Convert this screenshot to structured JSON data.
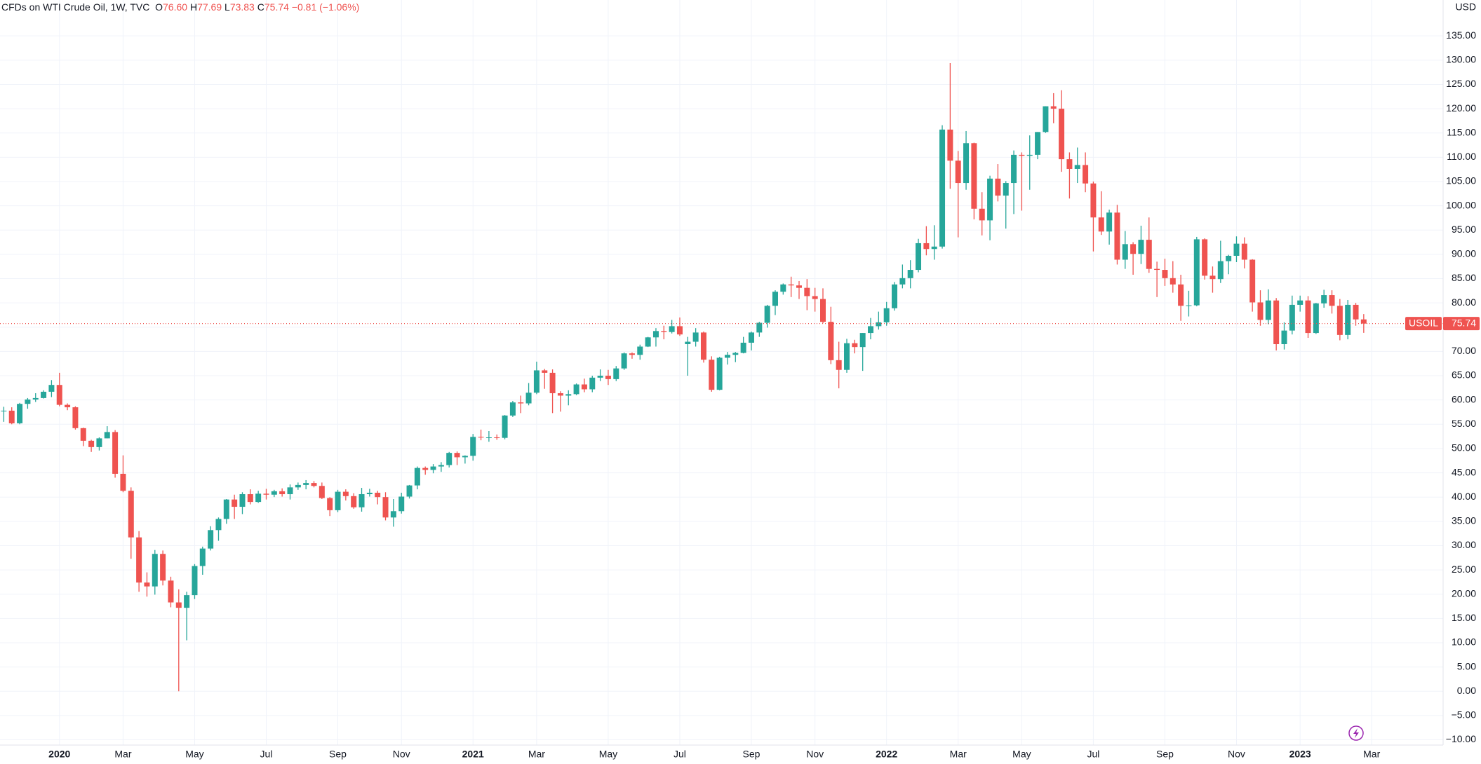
{
  "header": {
    "title": "CFDs on WTI Crude Oil, 1W, TVC",
    "open_key": "O",
    "open": "76.60",
    "high_key": "H",
    "high": "77.69",
    "low_key": "L",
    "low": "73.83",
    "close_key": "C",
    "close": "75.74",
    "change": "−0.81 (−1.06%)"
  },
  "chart_data": {
    "type": "candlestick",
    "y_unit": "USD",
    "symbol": "USOIL",
    "last_price": 75.74,
    "up_color": "#26a69a",
    "down_color": "#ef5350",
    "grid": true,
    "ylim": [
      -11.08,
      142.39
    ],
    "yticks": [
      {
        "value": 135,
        "label": "135.00"
      },
      {
        "value": 130,
        "label": "130.00"
      },
      {
        "value": 125,
        "label": "125.00"
      },
      {
        "value": 120,
        "label": "120.00"
      },
      {
        "value": 115,
        "label": "115.00"
      },
      {
        "value": 110,
        "label": "110.00"
      },
      {
        "value": 105,
        "label": "105.00"
      },
      {
        "value": 100,
        "label": "100.00"
      },
      {
        "value": 95,
        "label": "95.00"
      },
      {
        "value": 90,
        "label": "90.00"
      },
      {
        "value": 85,
        "label": "85.00"
      },
      {
        "value": 80,
        "label": "80.00"
      },
      {
        "value": 75,
        "label": "75.00"
      },
      {
        "value": 70,
        "label": "70.00"
      },
      {
        "value": 65,
        "label": "65.00"
      },
      {
        "value": 60,
        "label": "60.00"
      },
      {
        "value": 55,
        "label": "55.00"
      },
      {
        "value": 50,
        "label": "50.00"
      },
      {
        "value": 45,
        "label": "45.00"
      },
      {
        "value": 40,
        "label": "40.00"
      },
      {
        "value": 35,
        "label": "35.00"
      },
      {
        "value": 30,
        "label": "30.00"
      },
      {
        "value": 25,
        "label": "25.00"
      },
      {
        "value": 20,
        "label": "20.00"
      },
      {
        "value": 15,
        "label": "15.00"
      },
      {
        "value": 10,
        "label": "10.00"
      },
      {
        "value": 5,
        "label": "5.00"
      },
      {
        "value": 0,
        "label": "0.00"
      },
      {
        "value": -5,
        "label": "−5.00"
      },
      {
        "value": -10,
        "label": "−10.00"
      }
    ],
    "categories": [
      null,
      null,
      null,
      null,
      null,
      null,
      null,
      "2020",
      null,
      null,
      null,
      null,
      null,
      null,
      null,
      "Mar",
      null,
      null,
      null,
      null,
      null,
      null,
      null,
      null,
      "May",
      null,
      null,
      null,
      null,
      null,
      null,
      null,
      null,
      "Jul",
      null,
      null,
      null,
      null,
      null,
      null,
      null,
      null,
      "Sep",
      null,
      null,
      null,
      null,
      null,
      null,
      null,
      "Nov",
      null,
      null,
      null,
      null,
      null,
      null,
      null,
      null,
      "2021",
      null,
      null,
      null,
      null,
      null,
      null,
      null,
      "Mar",
      null,
      null,
      null,
      null,
      null,
      null,
      null,
      null,
      "May",
      null,
      null,
      null,
      null,
      null,
      null,
      null,
      null,
      "Jul",
      null,
      null,
      null,
      null,
      null,
      null,
      null,
      null,
      "Sep",
      null,
      null,
      null,
      null,
      null,
      null,
      null,
      "Nov",
      null,
      null,
      null,
      null,
      null,
      null,
      null,
      null,
      "2022",
      null,
      null,
      null,
      null,
      null,
      null,
      null,
      null,
      "Mar",
      null,
      null,
      null,
      null,
      null,
      null,
      null,
      "May",
      null,
      null,
      null,
      null,
      null,
      null,
      null,
      null,
      "Jul",
      null,
      null,
      null,
      null,
      null,
      null,
      null,
      null,
      "Sep",
      null,
      null,
      null,
      null,
      null,
      null,
      null,
      null,
      "Nov",
      null,
      null,
      null,
      null,
      null,
      null,
      null,
      "2023",
      null,
      null,
      null,
      null,
      null,
      null,
      null,
      null,
      "Mar"
    ],
    "open": [
      57.7,
      57.8,
      55.2,
      59.2,
      60.1,
      60.4,
      61.7,
      63.1,
      59.0,
      58.5,
      54.2,
      51.6,
      50.3,
      52.1,
      53.4,
      44.8,
      41.3,
      31.7,
      22.4,
      21.6,
      28.3,
      22.8,
      18.3,
      17.2,
      19.8,
      25.8,
      29.4,
      33.2,
      35.5,
      39.5,
      38.0,
      40.6,
      39.0,
      40.7,
      40.5,
      41.2,
      40.6,
      42.0,
      42.5,
      42.9,
      42.3,
      39.8,
      37.3,
      41.1,
      40.2,
      37.9,
      40.6,
      40.9,
      40.0,
      35.8,
      37.1,
      40.1,
      42.4,
      46.0,
      45.6,
      46.3,
      46.6,
      49.1,
      48.2,
      48.5,
      52.4,
      52.3,
      52.3,
      52.2,
      56.8,
      59.5,
      59.3,
      61.5,
      66.1,
      65.6,
      61.4,
      60.9,
      61.2,
      63.2,
      62.2,
      64.6,
      65.0,
      64.3,
      66.5,
      69.6,
      69.3,
      71.0,
      72.9,
      74.2,
      74.0,
      75.2,
      71.5,
      72.0,
      73.9,
      68.3,
      62.1,
      68.7,
      69.3,
      69.7,
      71.8,
      73.9,
      75.9,
      79.4,
      82.3,
      83.8,
      83.6,
      83.1,
      81.4,
      80.8,
      76.1,
      68.2,
      66.2,
      71.7,
      70.9,
      73.8,
      75.2,
      76.0,
      78.9,
      83.8,
      85.1,
      86.8,
      92.3,
      91.1,
      91.6,
      115.7,
      109.3,
      104.7,
      112.9,
      99.4,
      97.0,
      105.6,
      102.1,
      104.7,
      110.5,
      110.3,
      110.5,
      115.2,
      120.5,
      120.0,
      109.6,
      107.6,
      108.4,
      104.6,
      97.6,
      94.7,
      98.6,
      88.9,
      92.1,
      90.1,
      93.0,
      87.0,
      86.8,
      85.1,
      83.8,
      79.4,
      79.5,
      93.1,
      85.6,
      84.9,
      88.6,
      89.7,
      92.2,
      88.9,
      80.1,
      76.5,
      80.5,
      71.5,
      74.3,
      79.6,
      80.5,
      73.8,
      79.9,
      81.6,
      79.4,
      73.4,
      79.6,
      76.6,
      null
    ],
    "high": [
      58.6,
      58.5,
      59.4,
      60.4,
      61.4,
      62.0,
      64.1,
      65.6,
      59.3,
      58.7,
      54.3,
      51.8,
      52.3,
      54.6,
      53.8,
      48.6,
      42.0,
      33.0,
      24.5,
      29.1,
      29.0,
      23.6,
      21.0,
      20.5,
      26.2,
      29.8,
      34.0,
      35.8,
      39.6,
      40.5,
      41.0,
      41.6,
      41.3,
      41.7,
      41.5,
      41.8,
      42.6,
      43.0,
      43.5,
      43.3,
      43.0,
      40.0,
      41.5,
      41.6,
      40.8,
      41.9,
      41.7,
      41.3,
      41.0,
      39.6,
      40.9,
      42.5,
      46.3,
      46.3,
      46.8,
      47.2,
      49.3,
      49.4,
      48.6,
      53.0,
      53.9,
      53.6,
      52.9,
      56.9,
      59.8,
      60.9,
      63.5,
      67.9,
      66.4,
      66.3,
      61.8,
      62.0,
      63.4,
      64.4,
      65.0,
      66.3,
      66.2,
      67.0,
      69.8,
      69.8,
      71.4,
      73.0,
      74.8,
      75.3,
      76.5,
      77.0,
      73.0,
      74.8,
      74.1,
      69.0,
      68.9,
      69.9,
      69.9,
      73.0,
      74.1,
      76.1,
      79.6,
      82.6,
      84.0,
      85.4,
      84.5,
      84.9,
      83.1,
      83.0,
      79.2,
      72.0,
      72.6,
      72.4,
      73.8,
      76.9,
      78.2,
      80.2,
      84.3,
      87.9,
      88.8,
      93.2,
      95.8,
      96.0,
      116.6,
      129.4,
      111.3,
      115.4,
      113.0,
      102.8,
      106.2,
      108.6,
      105.1,
      111.4,
      111.0,
      114.5,
      115.2,
      120.5,
      123.2,
      123.8,
      111.0,
      112.0,
      111.0,
      105.0,
      103.0,
      99.2,
      100.2,
      94.8,
      92.5,
      95.9,
      97.6,
      88.5,
      89.1,
      88.6,
      85.8,
      82.5,
      93.6,
      93.3,
      87.5,
      92.8,
      89.9,
      93.7,
      93.5,
      89.0,
      82.6,
      82.8,
      81.0,
      76.0,
      81.5,
      81.5,
      81.4,
      80.0,
      82.7,
      82.6,
      80.8,
      80.6,
      80.0,
      77.69,
      null
    ],
    "low": [
      55.5,
      55.0,
      55.0,
      58.2,
      59.6,
      60.3,
      60.6,
      58.7,
      57.9,
      53.9,
      50.5,
      49.3,
      49.6,
      52.1,
      44.0,
      41.0,
      27.3,
      20.5,
      19.5,
      19.9,
      21.8,
      17.3,
      0.0,
      10.5,
      19.0,
      24.0,
      29.0,
      31.0,
      34.5,
      35.5,
      36.5,
      38.5,
      38.8,
      39.5,
      40.0,
      40.1,
      39.5,
      41.5,
      41.6,
      42.0,
      39.6,
      36.1,
      36.9,
      39.3,
      37.6,
      37.0,
      40.1,
      38.5,
      35.2,
      33.9,
      36.6,
      39.7,
      41.6,
      44.6,
      44.9,
      45.2,
      46.1,
      46.6,
      46.9,
      47.5,
      51.7,
      51.4,
      51.8,
      51.9,
      56.5,
      57.3,
      58.9,
      61.2,
      62.3,
      57.3,
      57.6,
      58.9,
      61.0,
      61.6,
      61.6,
      63.9,
      63.1,
      63.9,
      66.2,
      68.5,
      68.3,
      70.9,
      71.0,
      72.5,
      73.7,
      73.2,
      65.0,
      71.0,
      67.7,
      61.7,
      62.0,
      67.3,
      67.8,
      69.6,
      70.2,
      73.0,
      74.9,
      77.5,
      81.7,
      81.2,
      80.8,
      78.5,
      78.2,
      75.8,
      67.4,
      62.4,
      65.6,
      69.6,
      66.0,
      72.5,
      74.5,
      75.3,
      78.4,
      83.0,
      83.0,
      86.3,
      89.8,
      88.9,
      91.2,
      103.5,
      93.5,
      103.3,
      97.2,
      93.9,
      92.9,
      100.9,
      95.3,
      98.3,
      99.0,
      103.3,
      109.6,
      115.0,
      117.0,
      107.0,
      101.5,
      104.7,
      102.8,
      90.6,
      94.0,
      92.0,
      87.9,
      87.0,
      85.8,
      88.0,
      86.2,
      81.2,
      83.5,
      82.1,
      76.3,
      77.2,
      79.3,
      84.8,
      82.1,
      84.1,
      85.9,
      88.4,
      87.1,
      78.2,
      75.3,
      75.6,
      70.2,
      70.4,
      73.5,
      78.2,
      72.8,
      73.6,
      79.0,
      77.8,
      72.3,
      72.5,
      75.3,
      73.83,
      null
    ],
    "close": [
      57.8,
      55.2,
      59.2,
      60.1,
      60.4,
      61.7,
      63.1,
      59.0,
      58.5,
      54.2,
      51.6,
      50.3,
      52.1,
      53.4,
      44.8,
      41.3,
      31.7,
      22.4,
      21.6,
      28.3,
      22.8,
      18.3,
      17.2,
      19.8,
      25.8,
      29.4,
      33.2,
      35.5,
      39.5,
      38.0,
      40.6,
      39.0,
      40.7,
      40.5,
      41.2,
      40.6,
      42.0,
      42.5,
      42.9,
      42.3,
      39.8,
      37.3,
      41.1,
      40.2,
      37.9,
      40.6,
      40.9,
      40.0,
      35.8,
      37.1,
      40.1,
      42.4,
      46.0,
      45.6,
      46.3,
      46.6,
      49.1,
      48.2,
      48.5,
      52.4,
      52.3,
      52.3,
      52.2,
      56.8,
      59.5,
      59.3,
      61.5,
      66.1,
      65.6,
      61.4,
      60.9,
      61.2,
      63.2,
      62.2,
      64.6,
      65.0,
      64.3,
      66.5,
      69.6,
      69.3,
      71.0,
      72.9,
      74.2,
      74.0,
      75.2,
      73.5,
      72.0,
      73.9,
      68.3,
      62.1,
      68.7,
      69.3,
      69.7,
      71.8,
      73.9,
      75.9,
      79.4,
      82.3,
      83.8,
      83.6,
      83.1,
      81.4,
      80.8,
      76.1,
      68.2,
      66.2,
      71.7,
      70.9,
      73.8,
      75.2,
      76.0,
      78.9,
      83.8,
      85.1,
      86.8,
      92.3,
      91.1,
      91.6,
      115.7,
      109.3,
      104.7,
      112.9,
      99.4,
      97.0,
      105.6,
      102.1,
      104.7,
      110.5,
      110.3,
      110.5,
      115.2,
      120.5,
      120.0,
      109.6,
      107.6,
      108.4,
      104.6,
      97.6,
      94.7,
      98.6,
      88.9,
      92.1,
      90.1,
      93.0,
      87.0,
      86.8,
      85.1,
      83.8,
      79.4,
      79.5,
      93.1,
      85.6,
      84.9,
      88.6,
      89.7,
      92.2,
      88.9,
      80.1,
      76.5,
      80.5,
      71.5,
      74.3,
      79.6,
      80.5,
      73.8,
      79.9,
      81.6,
      79.4,
      73.4,
      79.6,
      76.6,
      75.74,
      null
    ]
  }
}
